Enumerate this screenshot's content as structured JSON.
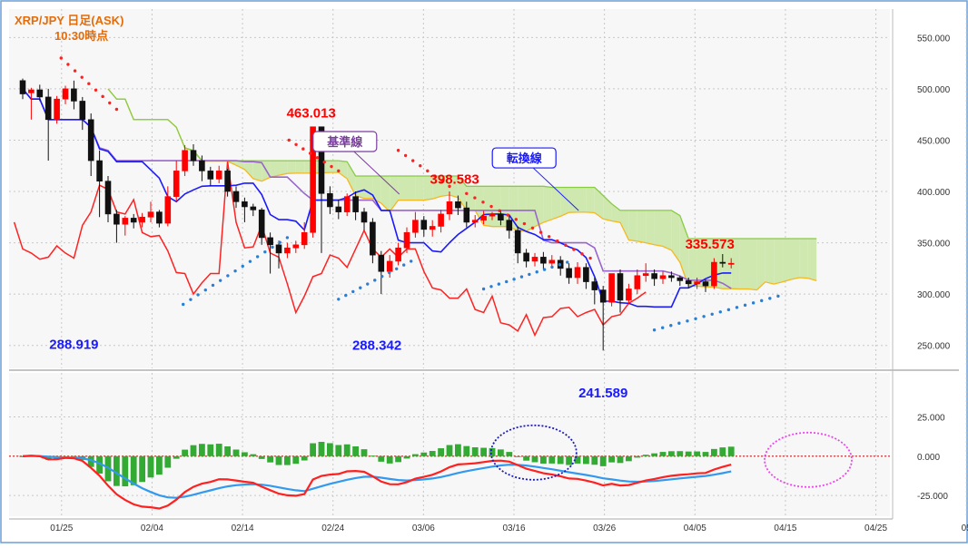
{
  "title": {
    "line1": "XRP/JPY 日足(ASK)",
    "line2": "10:30時点"
  },
  "colors": {
    "up": "#ff0000",
    "down": "#111111",
    "kijun": "#9966cc",
    "tenkan": "#1a1aff",
    "chikou": "#ff2222",
    "cloud_bull": "#cfe8b0",
    "cloud_bear": "#fbe0b8",
    "span_a": "#f5b820",
    "span_b": "#88cc44",
    "macd": "#ff2020",
    "signal": "#3399ee",
    "hist": "#33aa33",
    "support_dots": "#2a7fd4",
    "resist_dots": "#ff2020",
    "ellipse1": "#1a1acc",
    "ellipse2": "#ee44ee"
  },
  "chart_data": [
    {
      "type": "candlestick",
      "ylim": [
        215,
        570
      ],
      "y_ticks": [
        "550.000",
        "500.000",
        "450.000",
        "400.000",
        "350.000",
        "300.000",
        "250.000"
      ],
      "x_ticks": [
        "01/25",
        "02/04",
        "02/14",
        "02/24",
        "03/06",
        "03/16",
        "03/26",
        "04/05",
        "04/15",
        "04/25",
        "05"
      ],
      "grid": true,
      "start_date": "01/23",
      "candles": [
        [
          508,
          495,
          510,
          490
        ],
        [
          496,
          499,
          501,
          470
        ],
        [
          499,
          492,
          504,
          488
        ],
        [
          492,
          470,
          500,
          430
        ],
        [
          470,
          490,
          493,
          466
        ],
        [
          490,
          500,
          503,
          485
        ],
        [
          500,
          488,
          508,
          480
        ],
        [
          488,
          470,
          492,
          460
        ],
        [
          470,
          430,
          476,
          415
        ],
        [
          430,
          410,
          440,
          375
        ],
        [
          410,
          378,
          415,
          370
        ],
        [
          378,
          368,
          382,
          350
        ],
        [
          368,
          374,
          376,
          357
        ],
        [
          374,
          370,
          378,
          364
        ],
        [
          370,
          375,
          379,
          365
        ],
        [
          375,
          380,
          390,
          370
        ],
        [
          380,
          369,
          382,
          365
        ],
        [
          369,
          395,
          405,
          366
        ],
        [
          395,
          420,
          430,
          390
        ],
        [
          420,
          440,
          445,
          415
        ],
        [
          440,
          430,
          446,
          425
        ],
        [
          430,
          420,
          435,
          410
        ],
        [
          420,
          412,
          424,
          405
        ],
        [
          412,
          420,
          425,
          408
        ],
        [
          420,
          400,
          422,
          395
        ],
        [
          400,
          390,
          405,
          384
        ],
        [
          390,
          385,
          394,
          370
        ],
        [
          385,
          382,
          388,
          376
        ],
        [
          382,
          355,
          384,
          348
        ],
        [
          355,
          348,
          360,
          320
        ],
        [
          348,
          340,
          352,
          325
        ],
        [
          340,
          345,
          350,
          335
        ],
        [
          345,
          348,
          352,
          340
        ],
        [
          348,
          360,
          370,
          344
        ],
        [
          360,
          463,
          463,
          355
        ],
        [
          463,
          398,
          463,
          340
        ],
        [
          398,
          385,
          405,
          378
        ],
        [
          385,
          380,
          392,
          373
        ],
        [
          380,
          395,
          398,
          376
        ],
        [
          395,
          380,
          400,
          372
        ],
        [
          380,
          370,
          384,
          362
        ],
        [
          370,
          338,
          374,
          330
        ],
        [
          338,
          322,
          342,
          300
        ],
        [
          322,
          332,
          338,
          316
        ],
        [
          332,
          345,
          350,
          328
        ],
        [
          345,
          360,
          365,
          340
        ],
        [
          360,
          372,
          380,
          355
        ],
        [
          372,
          363,
          376,
          356
        ],
        [
          363,
          366,
          372,
          356
        ],
        [
          366,
          378,
          382,
          360
        ],
        [
          378,
          390,
          400,
          372
        ],
        [
          390,
          384,
          396,
          377
        ],
        [
          384,
          370,
          390,
          365
        ],
        [
          370,
          372,
          377,
          365
        ],
        [
          372,
          376,
          381,
          368
        ],
        [
          376,
          378,
          380,
          372
        ],
        [
          378,
          372,
          382,
          367
        ],
        [
          372,
          362,
          376,
          354
        ],
        [
          362,
          340,
          366,
          330
        ],
        [
          340,
          332,
          344,
          326
        ],
        [
          332,
          336,
          340,
          327
        ],
        [
          336,
          330,
          341,
          324
        ],
        [
          330,
          333,
          338,
          325
        ],
        [
          333,
          325,
          337,
          318
        ],
        [
          325,
          316,
          330,
          310
        ],
        [
          316,
          326,
          331,
          310
        ],
        [
          326,
          312,
          330,
          305
        ],
        [
          312,
          304,
          316,
          290
        ],
        [
          304,
          292,
          308,
          245
        ],
        [
          292,
          320,
          320,
          288
        ],
        [
          320,
          294,
          324,
          282
        ],
        [
          294,
          305,
          310,
          290
        ],
        [
          305,
          318,
          324,
          300
        ],
        [
          318,
          320,
          330,
          312
        ],
        [
          320,
          315,
          324,
          308
        ],
        [
          315,
          318,
          322,
          310
        ],
        [
          318,
          316,
          322,
          312
        ],
        [
          316,
          313,
          318,
          308
        ],
        [
          313,
          310,
          316,
          306
        ],
        [
          310,
          312,
          316,
          305
        ],
        [
          312,
          308,
          314,
          302
        ],
        [
          308,
          331,
          335,
          305
        ],
        [
          331,
          330,
          339,
          326
        ],
        [
          330,
          330,
          335,
          325
        ]
      ],
      "highlights": [
        {
          "text": "288.919",
          "label_x_index": 6,
          "value": 288.919,
          "color": "blue"
        },
        {
          "text": "288.342",
          "label_x_index": 41.5,
          "value": 288.342,
          "color": "blue"
        },
        {
          "text": "241.589",
          "label_x_index": 68,
          "value": 241.589,
          "color": "blue"
        },
        {
          "text": "463.013",
          "label_x_index": 33.8,
          "value": 463.013,
          "color": "red"
        },
        {
          "text": "398.583",
          "label_x_index": 50.6,
          "value": 398.583,
          "color": "red"
        },
        {
          "text": "335.573",
          "label_x_index": 80.5,
          "value": 335.573,
          "color": "red"
        }
      ],
      "callouts": [
        {
          "text": "基準線",
          "color": "#7a3e9d",
          "bg": "#ffffff",
          "index": 37,
          "value": 418
        },
        {
          "text": "転換線",
          "color": "#1a1aff",
          "bg": "#ffffff",
          "index": 58,
          "value": 402
        }
      ]
    },
    {
      "type": "macd",
      "ylim": [
        -33,
        42
      ],
      "y_ticks": [
        "25.000",
        "0.000",
        "-25.000"
      ],
      "grid": true
    }
  ]
}
